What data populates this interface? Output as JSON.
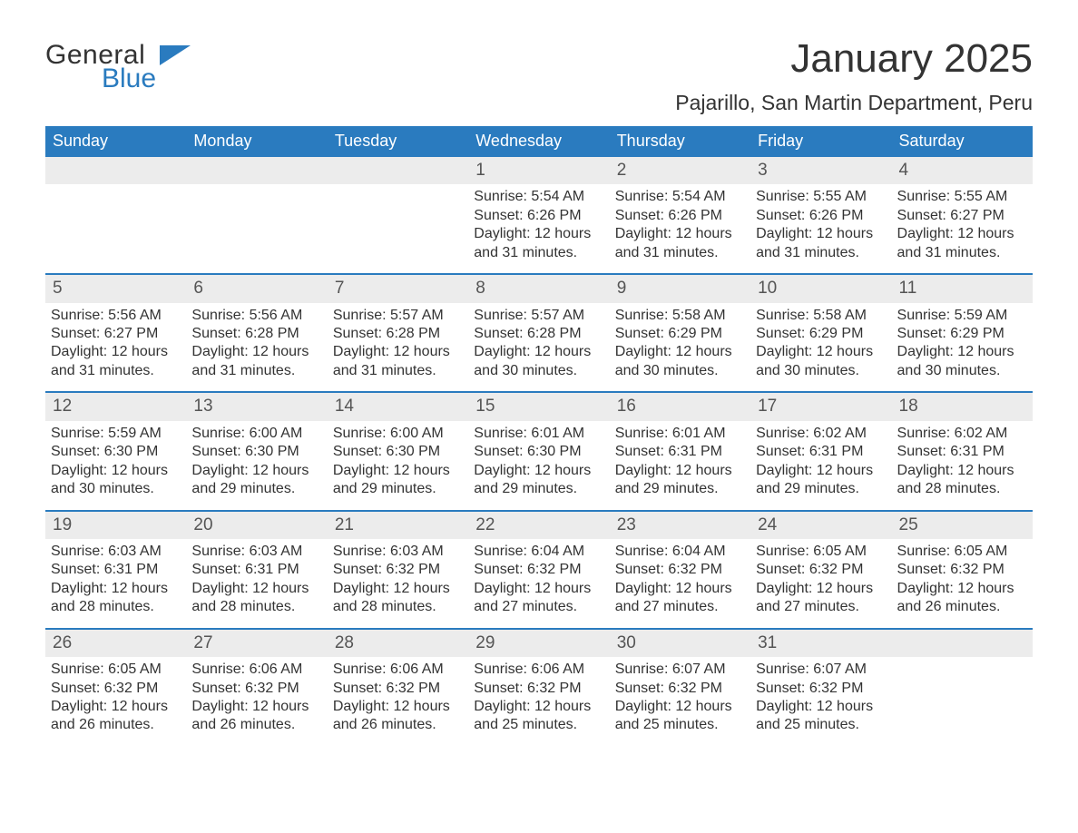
{
  "brand": {
    "word1": "General",
    "word2": "Blue",
    "text_color": "#333333",
    "accent_color": "#2a7bbf"
  },
  "header": {
    "title": "January 2025",
    "location": "Pajarillo, San Martin Department, Peru"
  },
  "calendar": {
    "weekday_bg": "#2a7bbf",
    "weekday_fg": "#ffffff",
    "daynum_bg": "#ececec",
    "divider_color": "#2a7bbf",
    "text_color": "#333333",
    "weekdays": [
      "Sunday",
      "Monday",
      "Tuesday",
      "Wednesday",
      "Thursday",
      "Friday",
      "Saturday"
    ],
    "weeks": [
      [
        {
          "blank": true
        },
        {
          "blank": true
        },
        {
          "blank": true
        },
        {
          "day": "1",
          "sunrise": "Sunrise: 5:54 AM",
          "sunset": "Sunset: 6:26 PM",
          "dl1": "Daylight: 12 hours",
          "dl2": "and 31 minutes."
        },
        {
          "day": "2",
          "sunrise": "Sunrise: 5:54 AM",
          "sunset": "Sunset: 6:26 PM",
          "dl1": "Daylight: 12 hours",
          "dl2": "and 31 minutes."
        },
        {
          "day": "3",
          "sunrise": "Sunrise: 5:55 AM",
          "sunset": "Sunset: 6:26 PM",
          "dl1": "Daylight: 12 hours",
          "dl2": "and 31 minutes."
        },
        {
          "day": "4",
          "sunrise": "Sunrise: 5:55 AM",
          "sunset": "Sunset: 6:27 PM",
          "dl1": "Daylight: 12 hours",
          "dl2": "and 31 minutes."
        }
      ],
      [
        {
          "day": "5",
          "sunrise": "Sunrise: 5:56 AM",
          "sunset": "Sunset: 6:27 PM",
          "dl1": "Daylight: 12 hours",
          "dl2": "and 31 minutes."
        },
        {
          "day": "6",
          "sunrise": "Sunrise: 5:56 AM",
          "sunset": "Sunset: 6:28 PM",
          "dl1": "Daylight: 12 hours",
          "dl2": "and 31 minutes."
        },
        {
          "day": "7",
          "sunrise": "Sunrise: 5:57 AM",
          "sunset": "Sunset: 6:28 PM",
          "dl1": "Daylight: 12 hours",
          "dl2": "and 31 minutes."
        },
        {
          "day": "8",
          "sunrise": "Sunrise: 5:57 AM",
          "sunset": "Sunset: 6:28 PM",
          "dl1": "Daylight: 12 hours",
          "dl2": "and 30 minutes."
        },
        {
          "day": "9",
          "sunrise": "Sunrise: 5:58 AM",
          "sunset": "Sunset: 6:29 PM",
          "dl1": "Daylight: 12 hours",
          "dl2": "and 30 minutes."
        },
        {
          "day": "10",
          "sunrise": "Sunrise: 5:58 AM",
          "sunset": "Sunset: 6:29 PM",
          "dl1": "Daylight: 12 hours",
          "dl2": "and 30 minutes."
        },
        {
          "day": "11",
          "sunrise": "Sunrise: 5:59 AM",
          "sunset": "Sunset: 6:29 PM",
          "dl1": "Daylight: 12 hours",
          "dl2": "and 30 minutes."
        }
      ],
      [
        {
          "day": "12",
          "sunrise": "Sunrise: 5:59 AM",
          "sunset": "Sunset: 6:30 PM",
          "dl1": "Daylight: 12 hours",
          "dl2": "and 30 minutes."
        },
        {
          "day": "13",
          "sunrise": "Sunrise: 6:00 AM",
          "sunset": "Sunset: 6:30 PM",
          "dl1": "Daylight: 12 hours",
          "dl2": "and 29 minutes."
        },
        {
          "day": "14",
          "sunrise": "Sunrise: 6:00 AM",
          "sunset": "Sunset: 6:30 PM",
          "dl1": "Daylight: 12 hours",
          "dl2": "and 29 minutes."
        },
        {
          "day": "15",
          "sunrise": "Sunrise: 6:01 AM",
          "sunset": "Sunset: 6:30 PM",
          "dl1": "Daylight: 12 hours",
          "dl2": "and 29 minutes."
        },
        {
          "day": "16",
          "sunrise": "Sunrise: 6:01 AM",
          "sunset": "Sunset: 6:31 PM",
          "dl1": "Daylight: 12 hours",
          "dl2": "and 29 minutes."
        },
        {
          "day": "17",
          "sunrise": "Sunrise: 6:02 AM",
          "sunset": "Sunset: 6:31 PM",
          "dl1": "Daylight: 12 hours",
          "dl2": "and 29 minutes."
        },
        {
          "day": "18",
          "sunrise": "Sunrise: 6:02 AM",
          "sunset": "Sunset: 6:31 PM",
          "dl1": "Daylight: 12 hours",
          "dl2": "and 28 minutes."
        }
      ],
      [
        {
          "day": "19",
          "sunrise": "Sunrise: 6:03 AM",
          "sunset": "Sunset: 6:31 PM",
          "dl1": "Daylight: 12 hours",
          "dl2": "and 28 minutes."
        },
        {
          "day": "20",
          "sunrise": "Sunrise: 6:03 AM",
          "sunset": "Sunset: 6:31 PM",
          "dl1": "Daylight: 12 hours",
          "dl2": "and 28 minutes."
        },
        {
          "day": "21",
          "sunrise": "Sunrise: 6:03 AM",
          "sunset": "Sunset: 6:32 PM",
          "dl1": "Daylight: 12 hours",
          "dl2": "and 28 minutes."
        },
        {
          "day": "22",
          "sunrise": "Sunrise: 6:04 AM",
          "sunset": "Sunset: 6:32 PM",
          "dl1": "Daylight: 12 hours",
          "dl2": "and 27 minutes."
        },
        {
          "day": "23",
          "sunrise": "Sunrise: 6:04 AM",
          "sunset": "Sunset: 6:32 PM",
          "dl1": "Daylight: 12 hours",
          "dl2": "and 27 minutes."
        },
        {
          "day": "24",
          "sunrise": "Sunrise: 6:05 AM",
          "sunset": "Sunset: 6:32 PM",
          "dl1": "Daylight: 12 hours",
          "dl2": "and 27 minutes."
        },
        {
          "day": "25",
          "sunrise": "Sunrise: 6:05 AM",
          "sunset": "Sunset: 6:32 PM",
          "dl1": "Daylight: 12 hours",
          "dl2": "and 26 minutes."
        }
      ],
      [
        {
          "day": "26",
          "sunrise": "Sunrise: 6:05 AM",
          "sunset": "Sunset: 6:32 PM",
          "dl1": "Daylight: 12 hours",
          "dl2": "and 26 minutes."
        },
        {
          "day": "27",
          "sunrise": "Sunrise: 6:06 AM",
          "sunset": "Sunset: 6:32 PM",
          "dl1": "Daylight: 12 hours",
          "dl2": "and 26 minutes."
        },
        {
          "day": "28",
          "sunrise": "Sunrise: 6:06 AM",
          "sunset": "Sunset: 6:32 PM",
          "dl1": "Daylight: 12 hours",
          "dl2": "and 26 minutes."
        },
        {
          "day": "29",
          "sunrise": "Sunrise: 6:06 AM",
          "sunset": "Sunset: 6:32 PM",
          "dl1": "Daylight: 12 hours",
          "dl2": "and 25 minutes."
        },
        {
          "day": "30",
          "sunrise": "Sunrise: 6:07 AM",
          "sunset": "Sunset: 6:32 PM",
          "dl1": "Daylight: 12 hours",
          "dl2": "and 25 minutes."
        },
        {
          "day": "31",
          "sunrise": "Sunrise: 6:07 AM",
          "sunset": "Sunset: 6:32 PM",
          "dl1": "Daylight: 12 hours",
          "dl2": "and 25 minutes."
        },
        {
          "blank": true
        }
      ]
    ]
  }
}
